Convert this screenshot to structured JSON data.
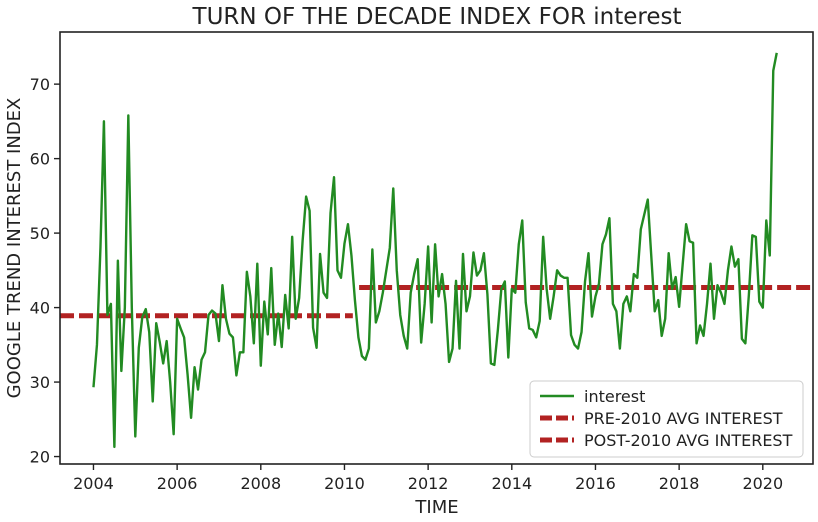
{
  "chart_data": {
    "type": "line",
    "title": "TURN OF THE DECADE INDEX FOR interest",
    "xlabel": "TIME",
    "ylabel": "GOOGLE TREND INTEREST INDEX",
    "xlim": [
      2003.2,
      2021.2
    ],
    "ylim": [
      19,
      77
    ],
    "x_ticks": [
      2004,
      2006,
      2008,
      2010,
      2012,
      2014,
      2016,
      2018,
      2020
    ],
    "x_tick_labels": [
      "2004",
      "2006",
      "2008",
      "2010",
      "2012",
      "2014",
      "2016",
      "2018",
      "2020"
    ],
    "y_ticks": [
      20,
      30,
      40,
      50,
      60,
      70
    ],
    "y_tick_labels": [
      "20",
      "30",
      "40",
      "50",
      "60",
      "70"
    ],
    "legend": {
      "position": "bottom-right",
      "entries": [
        "interest",
        "PRE-2010 AVG INTEREST",
        "POST-2010 AVG INTEREST"
      ]
    },
    "series": [
      {
        "name": "interest",
        "color": "#228B22",
        "start_year": 2004,
        "step": "monthly",
        "values": [
          29.3,
          35.0,
          48.0,
          65.0,
          39.0,
          40.5,
          21.3,
          46.3,
          31.5,
          40.0,
          65.8,
          40.0,
          22.7,
          34.6,
          38.7,
          39.8,
          36.7,
          27.4,
          37.9,
          35.4,
          32.5,
          35.5,
          30.0,
          23.0,
          38.5,
          37.2,
          36.0,
          31.0,
          25.2,
          32.0,
          29.0,
          33.0,
          34.0,
          39.0,
          39.6,
          39.2,
          35.5,
          43.0,
          38.5,
          36.5,
          36.0,
          30.9,
          34.0,
          34.0,
          44.8,
          41.5,
          35.2,
          45.9,
          32.2,
          40.8,
          36.4,
          45.3,
          35.0,
          39.2,
          34.7,
          41.7,
          37.2,
          49.5,
          38.5,
          41.3,
          49.0,
          54.9,
          53.0,
          37.3,
          34.6,
          47.2,
          42.0,
          41.3,
          52.7,
          57.5,
          45.0,
          44.0,
          48.6,
          51.2,
          47.0,
          41.0,
          36.0,
          33.5,
          33.0,
          34.5,
          47.8,
          38.0,
          39.5,
          42.0,
          45.0,
          48.0,
          56.0,
          45.0,
          39.0,
          36.2,
          34.5,
          42.0,
          44.5,
          46.5,
          35.3,
          40.5,
          48.2,
          38.0,
          48.5,
          41.5,
          44.5,
          40.5,
          32.7,
          34.5,
          43.6,
          34.5,
          47.2,
          39.5,
          41.5,
          47.4,
          44.3,
          45.0,
          47.3,
          41.8,
          32.5,
          32.3,
          37.0,
          42.5,
          43.5,
          33.3,
          42.5,
          42.0,
          48.5,
          51.7,
          40.7,
          37.2,
          37.0,
          36.0,
          38.2,
          49.5,
          42.5,
          38.5,
          41.5,
          45.0,
          44.3,
          44.0,
          44.0,
          36.3,
          35.0,
          34.5,
          36.7,
          43.5,
          47.3,
          38.8,
          41.5,
          43.2,
          48.5,
          49.8,
          52.0,
          40.5,
          39.5,
          34.5,
          40.5,
          41.5,
          39.5,
          44.5,
          44.0,
          50.5,
          52.5,
          54.5,
          47.0,
          39.5,
          41.0,
          36.2,
          38.5,
          47.3,
          42.5,
          44.1,
          40.1,
          45.7,
          51.2,
          48.9,
          48.7,
          35.2,
          37.6,
          36.2,
          40.5,
          45.9,
          38.5,
          43.0,
          42.0,
          40.5,
          45.0,
          48.2,
          45.5,
          46.5,
          35.8,
          35.2,
          41.7,
          49.7,
          49.5,
          40.8,
          40.0,
          51.7,
          47.0,
          71.8,
          74.2
        ]
      },
      {
        "name": "PRE-2010 AVG INTEREST",
        "color": "#B22222",
        "style": "dashed",
        "x": [
          2003.2,
          2010.2
        ],
        "y": [
          38.9,
          38.9
        ]
      },
      {
        "name": "POST-2010 AVG INTEREST",
        "color": "#B22222",
        "style": "dashed",
        "x": [
          2010.35,
          2021.2
        ],
        "y": [
          42.7,
          42.7
        ]
      }
    ]
  }
}
